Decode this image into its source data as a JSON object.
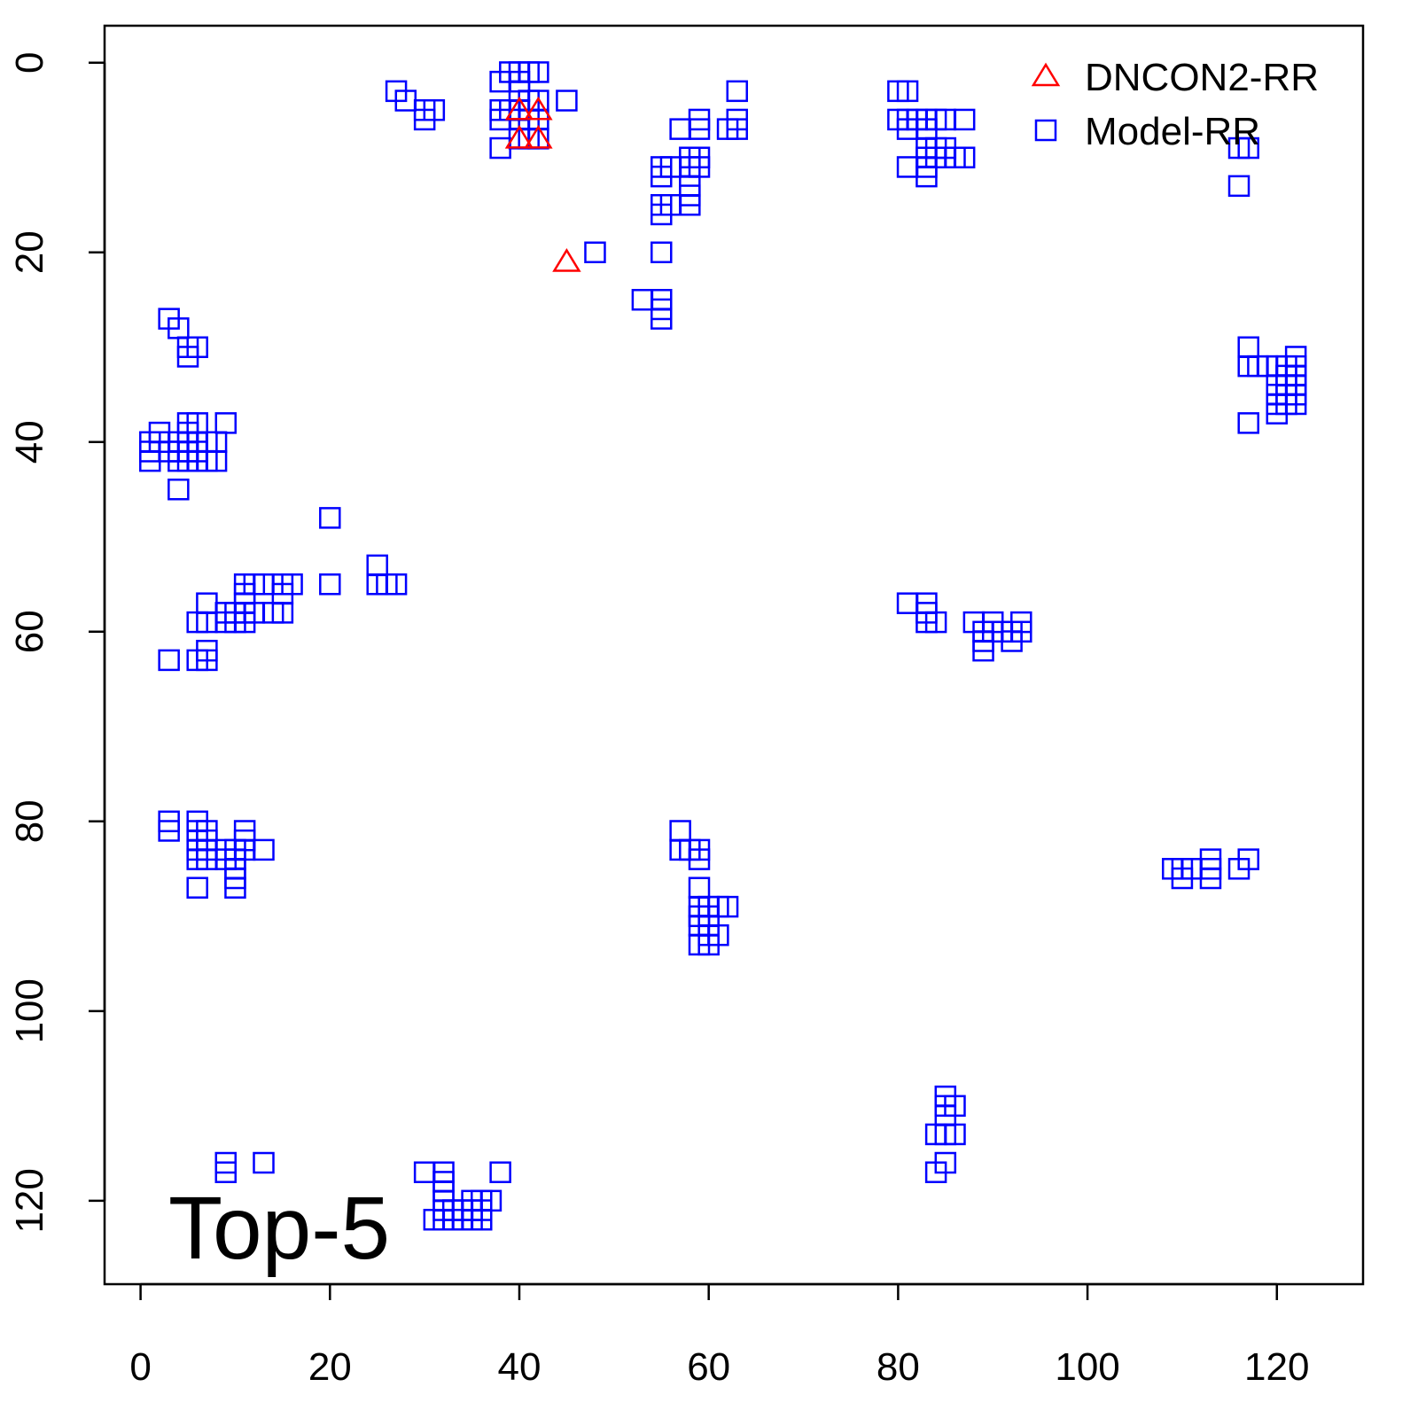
{
  "chart_data": {
    "type": "scatter",
    "annotation": "Top-5",
    "legend": "top-right",
    "xlim": [
      -3.8,
      129.1
    ],
    "ylim": [
      128.8,
      -3.9
    ],
    "xticks": [
      0,
      20,
      40,
      60,
      80,
      100,
      120
    ],
    "yticks": [
      0,
      20,
      40,
      60,
      80,
      100,
      120
    ],
    "series": [
      {
        "name": "DNCON2-RR",
        "color": "#ff0000",
        "marker": "triangle",
        "x": [
          40,
          42,
          40,
          42,
          45
        ],
        "y": [
          5,
          5,
          8,
          8,
          21
        ]
      },
      {
        "name": "Model-RR",
        "color": "#0000ff",
        "marker": "square",
        "x": [
          27,
          28,
          30,
          30,
          31,
          38,
          38,
          38,
          38,
          39,
          39,
          40,
          40,
          40,
          40,
          40,
          40,
          41,
          41,
          41,
          41,
          42,
          42,
          42,
          42,
          45,
          48,
          53,
          55,
          55,
          55,
          55,
          55,
          55,
          55,
          55,
          56,
          56,
          57,
          58,
          58,
          58,
          58,
          58,
          59,
          59,
          59,
          59,
          62,
          63,
          63,
          63,
          80,
          80,
          81,
          81,
          81,
          81,
          82,
          83,
          83,
          83,
          83,
          83,
          83,
          84,
          84,
          84,
          85,
          85,
          85,
          86,
          87,
          87,
          116,
          117,
          116,
          3,
          4,
          5,
          5,
          6,
          1,
          1,
          1,
          2,
          2,
          3,
          4,
          4,
          4,
          4,
          5,
          5,
          5,
          5,
          5,
          6,
          6,
          6,
          6,
          7,
          7,
          8,
          8,
          9,
          20,
          20,
          25,
          25,
          26,
          27,
          3,
          6,
          6,
          7,
          7,
          7,
          7,
          9,
          9,
          10,
          10,
          11,
          11,
          11,
          11,
          11,
          12,
          12,
          13,
          14,
          15,
          15,
          15,
          16,
          81,
          83,
          83,
          83,
          84,
          88,
          89,
          89,
          89,
          90,
          90,
          91,
          92,
          92,
          93,
          93,
          117,
          117,
          117,
          118,
          119,
          120,
          120,
          120,
          120,
          120,
          121,
          121,
          121,
          121,
          121,
          122,
          122,
          122,
          122,
          122,
          122,
          3,
          3,
          6,
          6,
          6,
          6,
          6,
          6,
          7,
          7,
          7,
          7,
          9,
          9,
          10,
          10,
          10,
          10,
          10,
          11,
          11,
          11,
          13,
          57,
          57,
          58,
          59,
          59,
          59,
          59,
          59,
          59,
          59,
          60,
          60,
          60,
          60,
          60,
          61,
          61,
          62,
          109,
          110,
          110,
          111,
          113,
          113,
          113,
          116,
          117,
          84,
          84,
          85,
          85,
          85,
          85,
          85,
          86,
          86,
          9,
          9,
          13,
          30,
          31,
          32,
          32,
          32,
          32,
          32,
          32,
          33,
          33,
          34,
          34,
          35,
          35,
          35,
          36,
          36,
          36,
          37,
          38
        ],
        "y": [
          3,
          4,
          5,
          6,
          5,
          2,
          5,
          6,
          9,
          1,
          5,
          1,
          2,
          3,
          5,
          6,
          8,
          1,
          4,
          6,
          8,
          1,
          4,
          6,
          8,
          4,
          20,
          25,
          11,
          12,
          15,
          16,
          20,
          25,
          26,
          27,
          11,
          15,
          7,
          10,
          11,
          13,
          14,
          15,
          6,
          7,
          10,
          11,
          7,
          3,
          6,
          7,
          3,
          6,
          3,
          6,
          7,
          11,
          6,
          6,
          7,
          9,
          10,
          11,
          12,
          6,
          9,
          10,
          6,
          9,
          10,
          10,
          6,
          10,
          9,
          9,
          13,
          27,
          28,
          30,
          31,
          30,
          40,
          41,
          42,
          40,
          39,
          41,
          40,
          41,
          42,
          45,
          38,
          39,
          40,
          41,
          42,
          38,
          40,
          41,
          42,
          40,
          42,
          40,
          42,
          38,
          48,
          55,
          53,
          55,
          55,
          55,
          63,
          59,
          63,
          57,
          59,
          62,
          63,
          58,
          59,
          58,
          59,
          55,
          56,
          57,
          58,
          59,
          55,
          58,
          55,
          58,
          55,
          56,
          58,
          55,
          57,
          57,
          58,
          59,
          59,
          59,
          60,
          61,
          62,
          59,
          60,
          60,
          60,
          61,
          59,
          60,
          30,
          32,
          38,
          32,
          32,
          32,
          34,
          35,
          36,
          37,
          32,
          33,
          34,
          35,
          36,
          31,
          32,
          33,
          34,
          35,
          36,
          80,
          81,
          80,
          81,
          82,
          83,
          84,
          87,
          81,
          82,
          83,
          84,
          83,
          84,
          83,
          84,
          85,
          86,
          87,
          81,
          82,
          83,
          83,
          81,
          83,
          83,
          83,
          84,
          87,
          89,
          90,
          91,
          93,
          89,
          90,
          91,
          92,
          93,
          89,
          92,
          89,
          85,
          85,
          86,
          85,
          84,
          85,
          86,
          85,
          84,
          113,
          117,
          109,
          110,
          111,
          113,
          116,
          110,
          113,
          116,
          117,
          116,
          117,
          122,
          117,
          118,
          119,
          120,
          121,
          122,
          121,
          122,
          121,
          122,
          120,
          121,
          122,
          120,
          121,
          122,
          120,
          117
        ]
      }
    ]
  }
}
